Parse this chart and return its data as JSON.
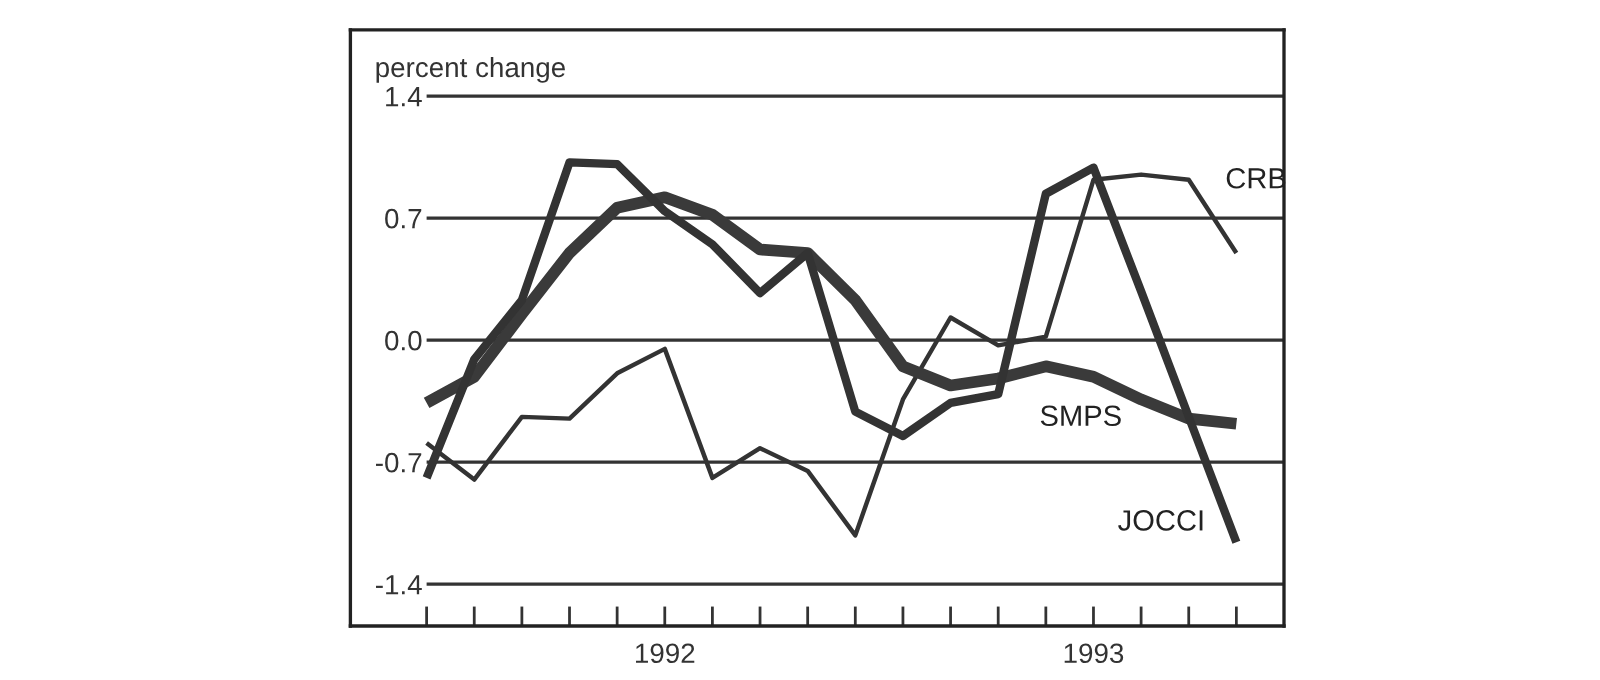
{
  "chart_data": {
    "type": "line",
    "ylabel": "percent change",
    "categories": [
      null,
      null,
      null,
      null,
      null,
      "1992",
      null,
      null,
      null,
      null,
      null,
      null,
      null,
      null,
      "1993",
      null,
      null,
      null
    ],
    "ylim": [
      -1.64,
      1.78
    ],
    "yticks": [
      1.4,
      0.7,
      {
        "value": 0,
        "label": "0.0"
      },
      -0.7,
      -1.4
    ],
    "grid": "y",
    "legend": false,
    "marker": "none",
    "line_style": "solid",
    "series": [
      {
        "name": "CRB",
        "color": "#333333",
        "values": [
          -0.59,
          -0.8,
          -0.44,
          -0.45,
          -0.19,
          -0.05,
          -0.79,
          -0.62,
          -0.75,
          -1.12,
          -0.34,
          0.13,
          -0.03,
          0.02,
          0.92,
          0.95,
          0.92,
          0.5
        ]
      },
      {
        "name": "SMPS",
        "color": "#3a3a3a",
        "values": [
          -0.36,
          -0.21,
          0.15,
          0.5,
          0.76,
          0.82,
          0.72,
          0.52,
          0.5,
          0.23,
          -0.15,
          -0.26,
          -0.22,
          -0.15,
          -0.21,
          -0.34,
          -0.45,
          -0.48
        ]
      },
      {
        "name": "JOCCI",
        "color": "#333333",
        "values": [
          -0.79,
          -0.11,
          0.23,
          1.02,
          1.01,
          0.74,
          0.55,
          0.27,
          0.5,
          -0.41,
          -0.55,
          -0.36,
          -0.31,
          0.84,
          0.99,
          0.28,
          -0.44,
          -1.16
        ]
      }
    ]
  }
}
